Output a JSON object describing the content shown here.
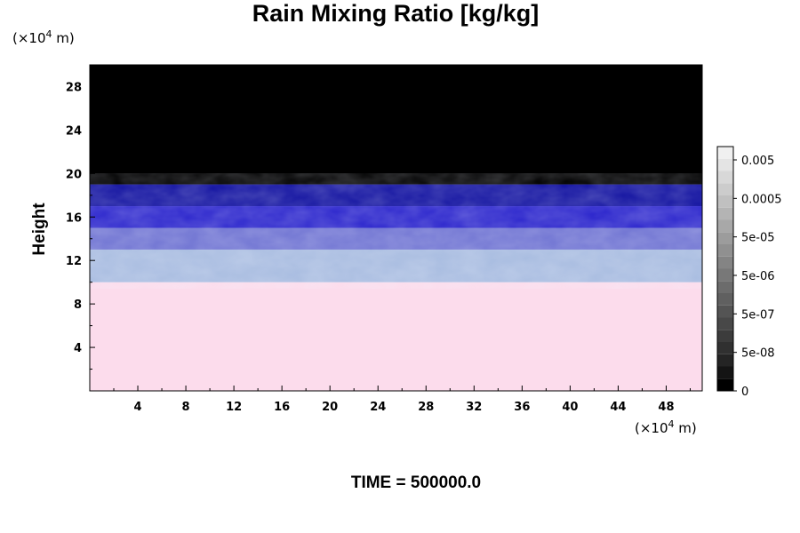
{
  "chart_data": {
    "type": "heatmap",
    "title": "Rain Mixing Ratio [kg/kg]",
    "ylabel": "Height",
    "x_unit": {
      "prefix": "(×10",
      "exponent": "4",
      "suffix": " m)"
    },
    "y_unit": {
      "prefix": "(×10",
      "exponent": "4",
      "suffix": " m)"
    },
    "xlim": [
      0,
      51
    ],
    "ylim": [
      0,
      30
    ],
    "x_ticks": [
      4,
      8,
      12,
      16,
      20,
      24,
      28,
      32,
      36,
      40,
      44,
      48
    ],
    "y_ticks": [
      4,
      8,
      12,
      16,
      20,
      24,
      28
    ],
    "bands": [
      {
        "y_from": 0,
        "y_to": 10,
        "color": "#fcdcec"
      },
      {
        "y_from": 10,
        "y_to": 13,
        "color": "#a8bce0"
      },
      {
        "y_from": 13,
        "y_to": 15,
        "color": "#6f73d2"
      },
      {
        "y_from": 15,
        "y_to": 17,
        "color": "#2a24cc"
      },
      {
        "y_from": 17,
        "y_to": 19,
        "color": "#1212a0"
      },
      {
        "y_from": 19,
        "y_to": 30,
        "color": "#000000"
      }
    ],
    "colorbar": {
      "labels": [
        "0.005",
        "0.0005",
        "5e-05",
        "5e-06",
        "5e-07",
        "5e-08",
        "0"
      ],
      "colors": [
        "#000000",
        "#141414",
        "#242424",
        "#303030",
        "#3c3c3c",
        "#484848",
        "#545454",
        "#606060",
        "#6c6c6c",
        "#787878",
        "#848484",
        "#909090",
        "#9c9c9c",
        "#a8a8a8",
        "#b4b4b4",
        "#c0c0c0",
        "#cccccc",
        "#d8d8d8",
        "#e4e4e4",
        "#f0f0f0"
      ]
    },
    "grid": false,
    "time_label": "TIME = 500000.0"
  }
}
